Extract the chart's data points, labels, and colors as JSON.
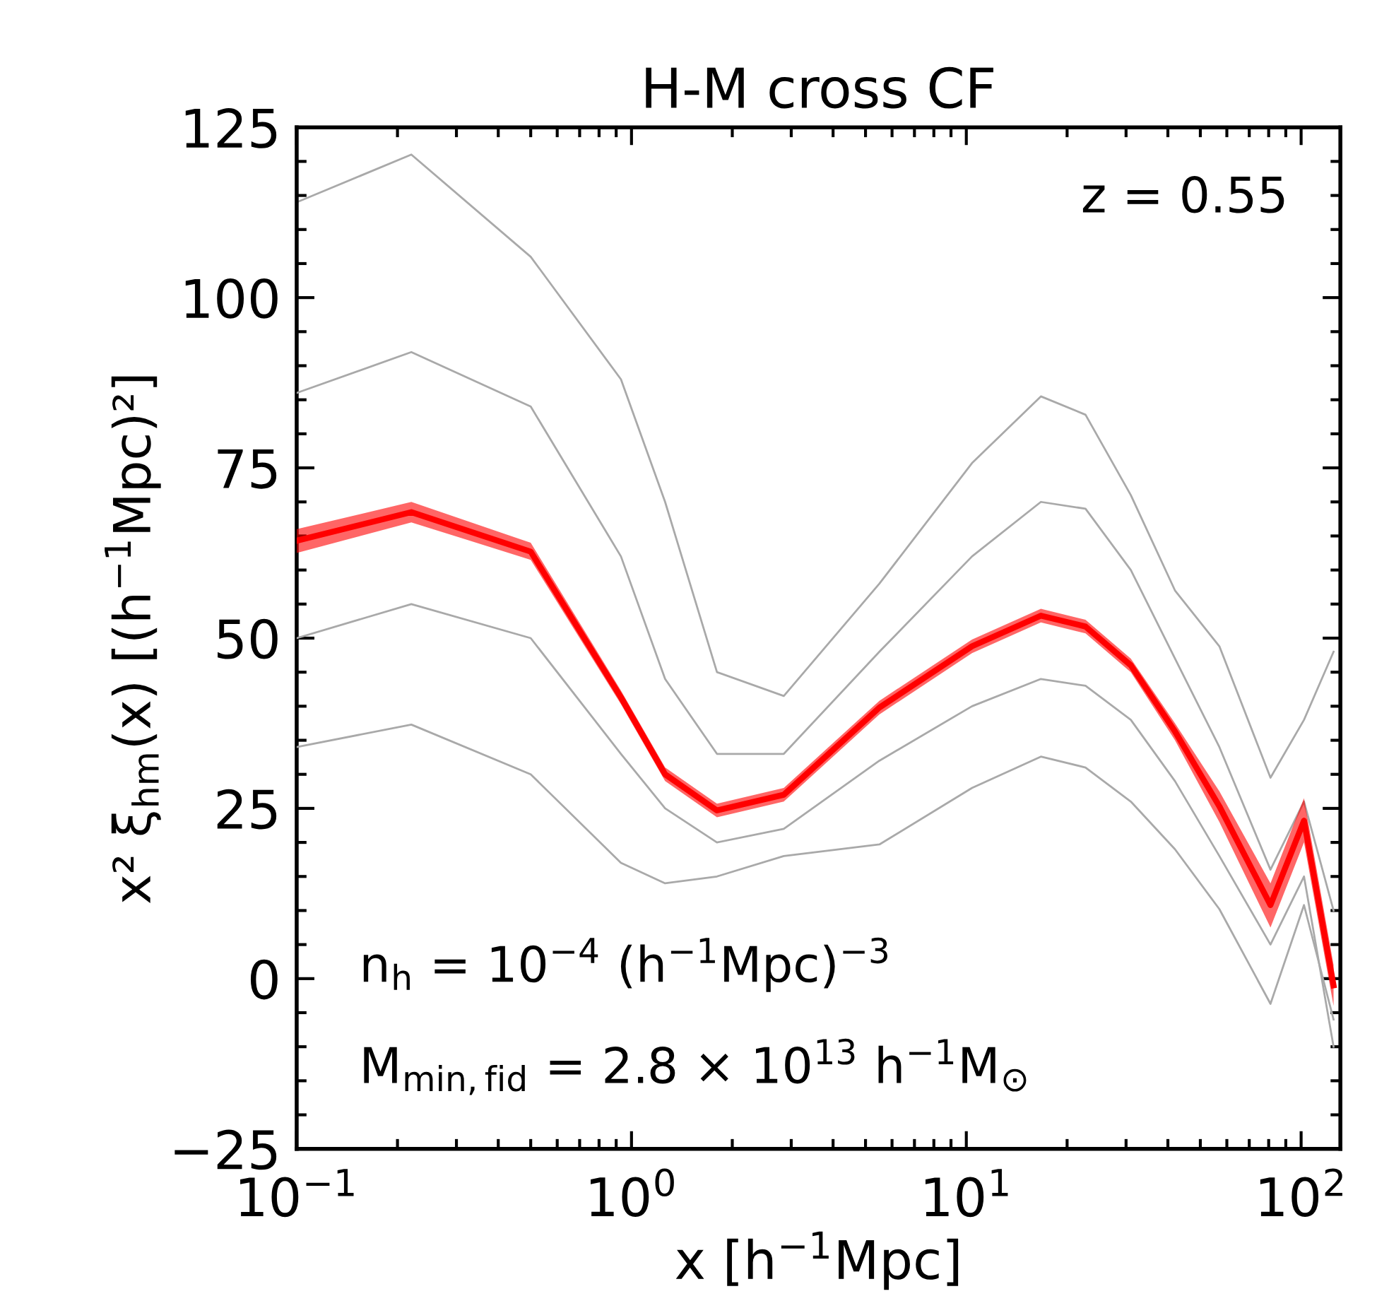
{
  "chart_data": {
    "type": "line",
    "title": "H-M cross CF",
    "xlabel": "x [h$^{−1}$Mpc]",
    "ylabel": "x² ξ$_{hm}$(x) [(h$^{−1}$Mpc)²]",
    "log": "x",
    "x": [
      0.1,
      0.22,
      0.5,
      0.93,
      1.26,
      1.8,
      2.85,
      5.5,
      10.4,
      16.7,
      22.7,
      31,
      42,
      57,
      81,
      102,
      125
    ],
    "series": [
      {
        "color": "#a9a9a9",
        "values": [
          114,
          121,
          106,
          88,
          70,
          45,
          41.5,
          58,
          75.7,
          85.5,
          82.8,
          71,
          57,
          48.8,
          29.5,
          38,
          48
        ]
      },
      {
        "color": "#a9a9a9",
        "values": [
          86,
          92,
          84,
          62,
          44,
          33,
          33,
          48,
          62,
          70,
          69,
          60,
          47,
          34,
          16,
          26,
          10
        ]
      },
      {
        "color": "#a9a9a9",
        "values": [
          50,
          55,
          50,
          33,
          25,
          20,
          22,
          32,
          40,
          44,
          43,
          38,
          29,
          18,
          5,
          15,
          -10
        ]
      },
      {
        "color": "#a9a9a9",
        "values": [
          34,
          37.3,
          30,
          17,
          14,
          15,
          18,
          19.7,
          28,
          32.6,
          31,
          26,
          19,
          10.2,
          -3.7,
          10.8,
          -6
        ]
      },
      {
        "color": "#ff0000",
        "values": [
          64.3,
          68.5,
          62.7,
          41.3,
          30,
          24.7,
          27,
          39.8,
          48.8,
          53.3,
          51.7,
          46,
          36.3,
          25.3,
          10.8,
          23.2,
          -1
        ],
        "lower": [
          62.5,
          67,
          61.5,
          40.3,
          29,
          23.7,
          26,
          38.8,
          47.8,
          52.3,
          50.7,
          45,
          35,
          23,
          7.5,
          20,
          -4
        ],
        "upper": [
          66,
          70,
          64,
          42.3,
          31,
          25.7,
          28,
          40.8,
          49.8,
          54.3,
          52.7,
          47,
          37.5,
          27.5,
          14,
          26.5,
          2
        ]
      }
    ],
    "xlim": [
      0.1,
      131
    ],
    "xticks": [
      {
        "value": 0.1,
        "label": "10$^{−1}$"
      },
      {
        "value": 1,
        "label": "10$^{0}$"
      },
      {
        "value": 10,
        "label": "10$^{1}$"
      },
      {
        "value": 100,
        "label": "10$^{2}$"
      }
    ],
    "ylim": [
      -25,
      125
    ],
    "yticks": [
      {
        "value": -25,
        "label": "−25"
      },
      0,
      25,
      50,
      75,
      100,
      125
    ],
    "grid": false,
    "marker": "none",
    "line_style": "solid",
    "annotations": [
      "z = 0.55",
      "n$_{h}$ = 10$^{−4}$ (h$^{−1}$Mpc)$^{−3}$",
      "M$_{min,fid}$ = 2.8 × 10$^{13}$ h$^{−1}$M$_{⊙}$"
    ]
  }
}
